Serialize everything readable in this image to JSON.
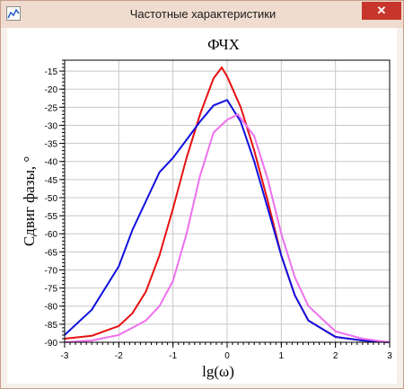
{
  "window": {
    "title": "Частотные характеристики",
    "close_label": "✕",
    "icon": "chart-app-icon"
  },
  "chart_data": {
    "type": "line",
    "title": "ФЧХ",
    "xlabel": "lg(ω)",
    "ylabel": "Сдвиг фазы, °",
    "xlim": [
      -3,
      3
    ],
    "ylim": [
      -90,
      -12
    ],
    "grid": true,
    "x_ticks": [
      -3,
      -2,
      -1,
      0,
      1,
      2,
      3
    ],
    "y_ticks": [
      -15,
      -20,
      -25,
      -30,
      -35,
      -40,
      -45,
      -50,
      -55,
      -60,
      -65,
      -70,
      -75,
      -80,
      -85,
      -90
    ],
    "series": [
      {
        "color": "#e81010",
        "x": [
          -3,
          -2.5,
          -2,
          -1.75,
          -1.5,
          -1.25,
          -1,
          -0.75,
          -0.5,
          -0.25,
          -0.1,
          0,
          0.25,
          0.5,
          0.75,
          1,
          1.25,
          1.5,
          2,
          2.5,
          3
        ],
        "y": [
          -89,
          -88.2,
          -85.5,
          -82,
          -76,
          -66,
          -53,
          -39,
          -27,
          -17,
          -14,
          -16.5,
          -25,
          -37,
          -51,
          -66,
          -77,
          -84,
          -88.5,
          -89.5,
          -90
        ]
      },
      {
        "color": "#1010e0",
        "x": [
          -3,
          -2.5,
          -2,
          -1.75,
          -1.5,
          -1.25,
          -1,
          -0.75,
          -0.5,
          -0.25,
          0,
          0.25,
          0.5,
          0.75,
          1,
          1.25,
          1.5,
          2,
          2.5,
          3
        ],
        "y": [
          -88,
          -81,
          -69,
          -59,
          -51,
          -43,
          -39,
          -34,
          -29,
          -24.5,
          -23,
          -29,
          -40,
          -53,
          -66,
          -77,
          -84,
          -88.5,
          -89.5,
          -90
        ]
      },
      {
        "color": "#ee70ee",
        "x": [
          -3,
          -2.5,
          -2,
          -1.5,
          -1.25,
          -1,
          -0.75,
          -0.5,
          -0.25,
          0,
          0.2,
          0.5,
          0.75,
          1,
          1.25,
          1.5,
          2,
          2.5,
          3
        ],
        "y": [
          -90,
          -89.5,
          -88,
          -84,
          -80,
          -73,
          -60,
          -44,
          -32,
          -28.5,
          -27,
          -33,
          -45,
          -60,
          -72,
          -80,
          -87,
          -89,
          -90
        ]
      }
    ]
  }
}
